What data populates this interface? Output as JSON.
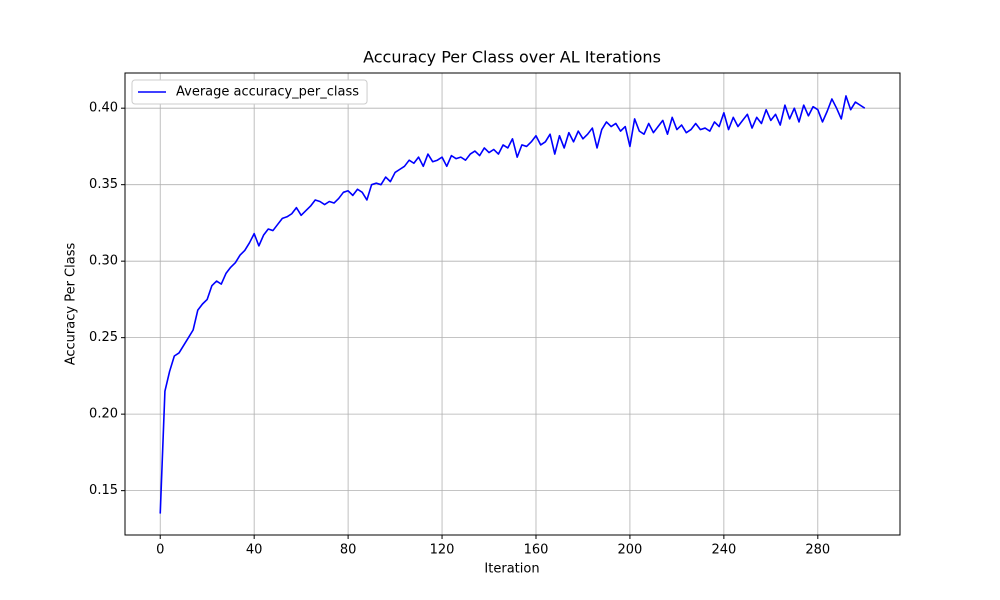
{
  "chart_data": {
    "type": "line",
    "title": "Accuracy Per Class over AL Iterations",
    "x_label": "Iteration",
    "y_label": "Accuracy Per Class",
    "x": [
      0,
      2,
      4,
      6,
      8,
      10,
      12,
      14,
      16,
      18,
      20,
      22,
      24,
      26,
      28,
      30,
      32,
      34,
      36,
      38,
      40,
      42,
      44,
      46,
      48,
      50,
      52,
      54,
      56,
      58,
      60,
      62,
      64,
      66,
      68,
      70,
      72,
      74,
      76,
      78,
      80,
      82,
      84,
      86,
      88,
      90,
      92,
      94,
      96,
      98,
      100,
      102,
      104,
      106,
      108,
      110,
      112,
      114,
      116,
      118,
      120,
      122,
      124,
      126,
      128,
      130,
      132,
      134,
      136,
      138,
      140,
      142,
      144,
      146,
      148,
      150,
      152,
      154,
      156,
      158,
      160,
      162,
      164,
      166,
      168,
      170,
      172,
      174,
      176,
      178,
      180,
      182,
      184,
      186,
      188,
      190,
      192,
      194,
      196,
      198,
      200,
      202,
      204,
      206,
      208,
      210,
      212,
      214,
      216,
      218,
      220,
      222,
      224,
      226,
      228,
      230,
      232,
      234,
      236,
      238,
      240,
      242,
      244,
      246,
      248,
      250,
      252,
      254,
      256,
      258,
      260,
      262,
      264,
      266,
      268,
      270,
      272,
      274,
      276,
      278,
      280,
      282,
      284,
      286,
      288,
      290,
      292,
      294,
      296,
      298,
      300
    ],
    "series": [
      {
        "name": "Average accuracy_per_class",
        "color": "#0000ff",
        "values": [
          0.135,
          0.215,
          0.228,
          0.238,
          0.24,
          0.245,
          0.25,
          0.255,
          0.268,
          0.272,
          0.275,
          0.284,
          0.287,
          0.285,
          0.292,
          0.296,
          0.299,
          0.304,
          0.307,
          0.312,
          0.318,
          0.31,
          0.317,
          0.321,
          0.32,
          0.324,
          0.328,
          0.329,
          0.331,
          0.335,
          0.33,
          0.333,
          0.336,
          0.34,
          0.339,
          0.337,
          0.339,
          0.338,
          0.341,
          0.345,
          0.346,
          0.343,
          0.347,
          0.345,
          0.34,
          0.35,
          0.351,
          0.35,
          0.355,
          0.352,
          0.358,
          0.36,
          0.362,
          0.366,
          0.364,
          0.368,
          0.362,
          0.37,
          0.365,
          0.366,
          0.368,
          0.362,
          0.369,
          0.367,
          0.368,
          0.366,
          0.37,
          0.372,
          0.369,
          0.374,
          0.371,
          0.373,
          0.37,
          0.376,
          0.374,
          0.38,
          0.368,
          0.376,
          0.375,
          0.378,
          0.382,
          0.376,
          0.378,
          0.383,
          0.37,
          0.382,
          0.374,
          0.384,
          0.378,
          0.385,
          0.38,
          0.383,
          0.387,
          0.374,
          0.386,
          0.391,
          0.388,
          0.39,
          0.385,
          0.388,
          0.375,
          0.393,
          0.385,
          0.383,
          0.39,
          0.384,
          0.388,
          0.392,
          0.383,
          0.394,
          0.386,
          0.389,
          0.384,
          0.386,
          0.39,
          0.386,
          0.387,
          0.385,
          0.391,
          0.388,
          0.397,
          0.386,
          0.394,
          0.388,
          0.392,
          0.396,
          0.387,
          0.394,
          0.39,
          0.399,
          0.392,
          0.396,
          0.389,
          0.402,
          0.393,
          0.4,
          0.391,
          0.402,
          0.395,
          0.401,
          0.399,
          0.391,
          0.398,
          0.406,
          0.4,
          0.393,
          0.408,
          0.399,
          0.404,
          0.402,
          0.4
        ]
      }
    ],
    "xlim": [
      -15,
      315
    ],
    "ylim": [
      0.121,
      0.423
    ],
    "xticks": [
      0,
      40,
      80,
      120,
      160,
      200,
      240,
      280
    ],
    "yticks": [
      0.15,
      {
        "value": 0.2,
        "label": "0.20"
      },
      0.25,
      {
        "value": 0.3,
        "label": "0.30"
      },
      0.35,
      {
        "value": 0.4,
        "label": "0.40"
      }
    ],
    "grid": true,
    "legend": "upper-left"
  }
}
